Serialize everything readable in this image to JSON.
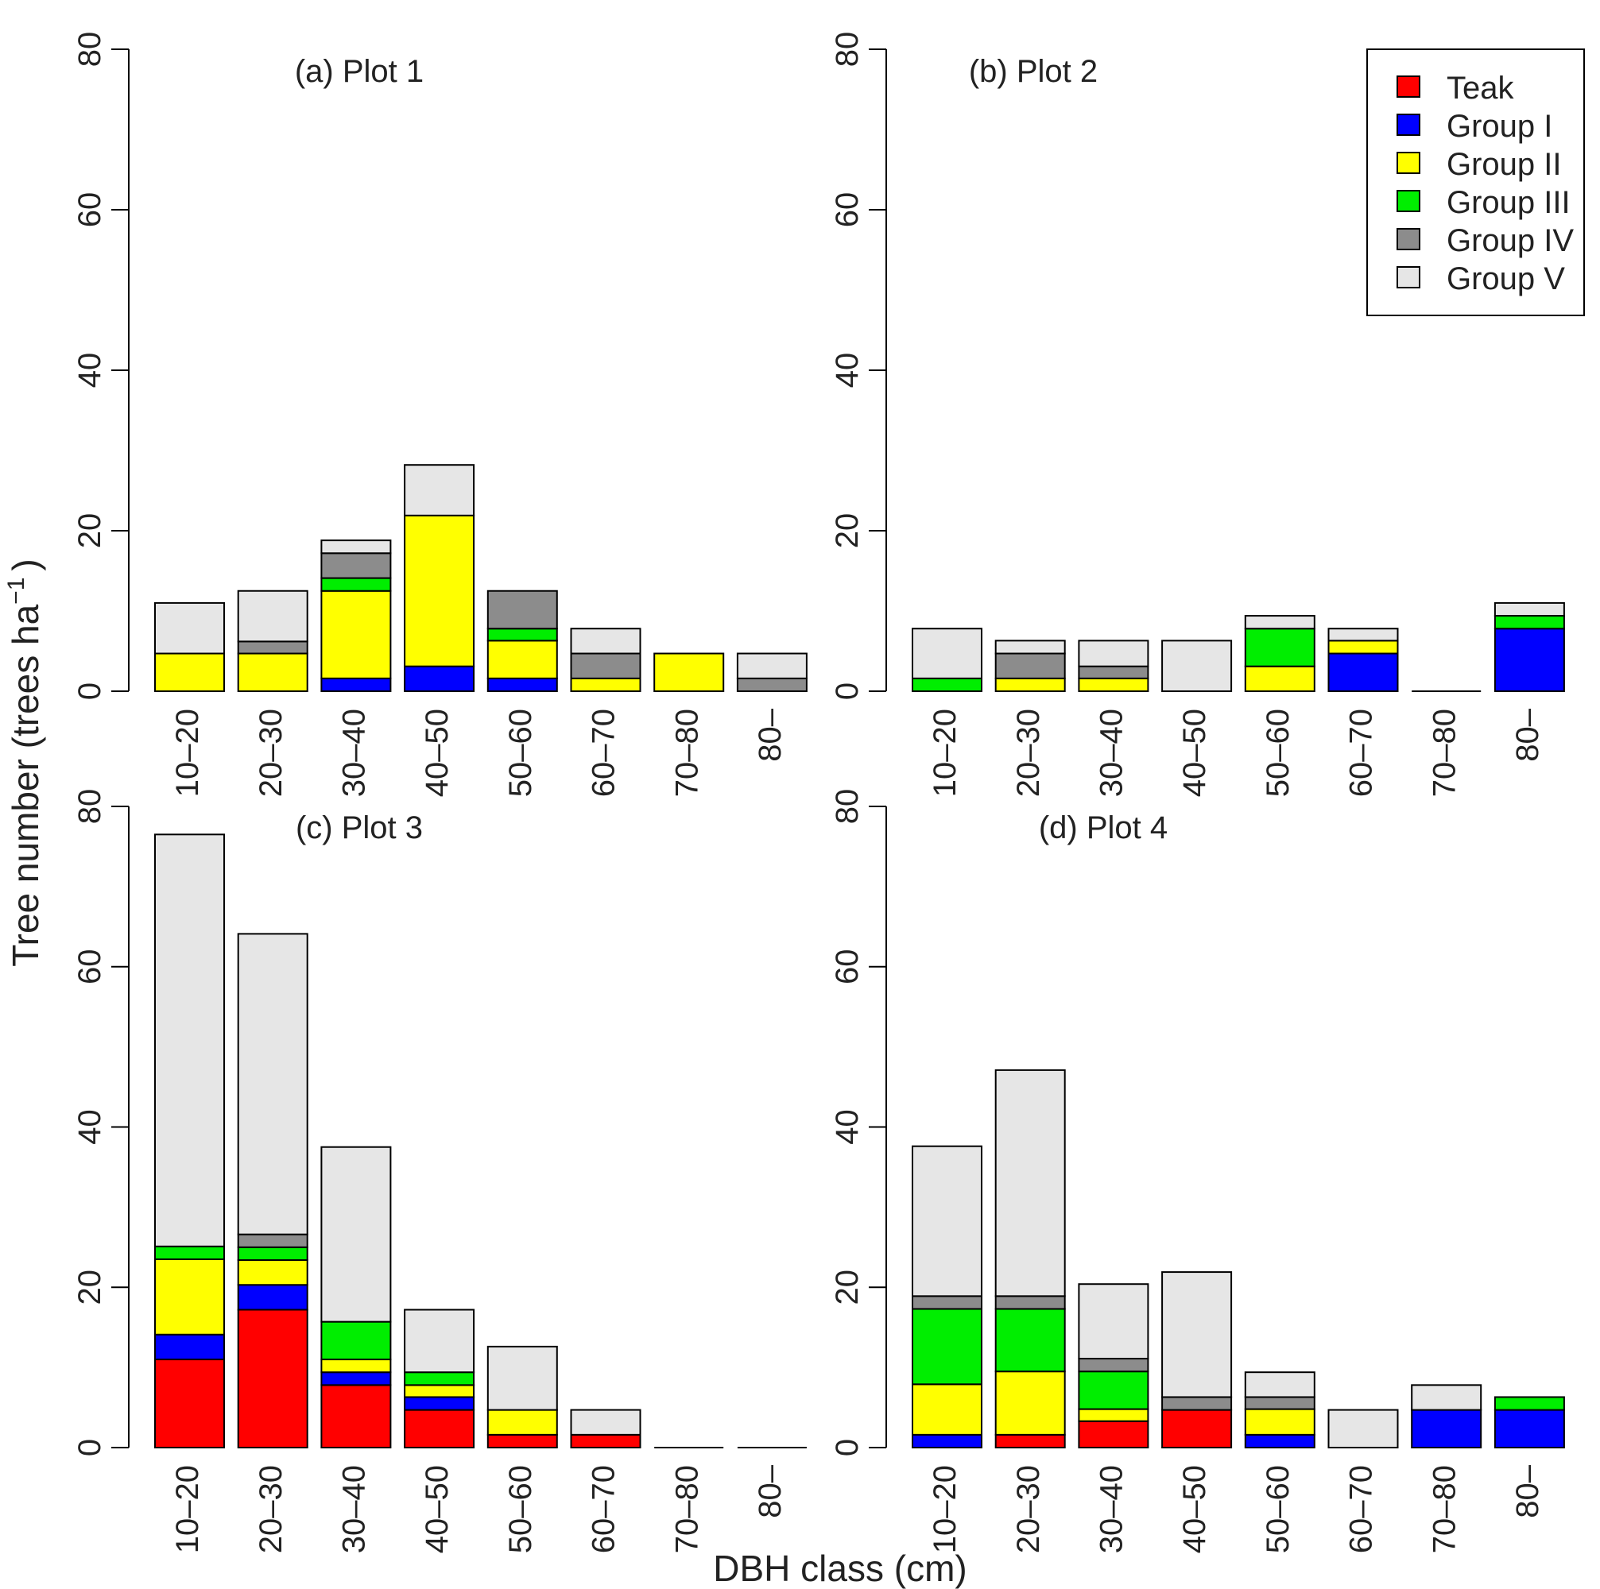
{
  "figure": {
    "ylabel": "Tree number (trees ha",
    "ylabel_superscript": "−1",
    "ylabel_close": ")",
    "xlabel": "DBH class (cm)"
  },
  "colors": {
    "Teak": "#ff0000",
    "Group I": "#0000ff",
    "Group II": "#ffff00",
    "Group III": "#00ee00",
    "Group IV": "#8c8c8c",
    "Group V": "#e6e6e6"
  },
  "legend": {
    "placement": "top-right",
    "entries": [
      "Teak",
      "Group I",
      "Group II",
      "Group III",
      "Group IV",
      "Group V"
    ]
  },
  "chart_data": [
    {
      "type": "bar",
      "stacked": true,
      "title": "(a) Plot 1",
      "categories": [
        "10–20",
        "20–30",
        "30–40",
        "40–50",
        "50–60",
        "60–70",
        "70–80",
        "80–"
      ],
      "ylim": [
        0,
        80
      ],
      "yticks": [
        0,
        20,
        40,
        60,
        80
      ],
      "series": [
        {
          "name": "Teak",
          "values": [
            0,
            0,
            0,
            0,
            0,
            0,
            0,
            0
          ]
        },
        {
          "name": "Group I",
          "values": [
            0,
            0,
            1.6,
            3.1,
            1.6,
            0,
            0,
            0
          ]
        },
        {
          "name": "Group II",
          "values": [
            4.7,
            4.7,
            10.9,
            18.8,
            4.7,
            1.6,
            4.7,
            0
          ]
        },
        {
          "name": "Group III",
          "values": [
            0,
            0,
            1.6,
            0,
            1.5,
            0,
            0,
            0
          ]
        },
        {
          "name": "Group IV",
          "values": [
            0,
            1.5,
            3.1,
            0,
            4.7,
            3.1,
            0,
            1.6
          ]
        },
        {
          "name": "Group V",
          "values": [
            6.3,
            6.3,
            1.6,
            6.3,
            0,
            3.1,
            0,
            3.1
          ]
        }
      ]
    },
    {
      "type": "bar",
      "stacked": true,
      "title": "(b) Plot 2",
      "categories": [
        "10–20",
        "20–30",
        "30–40",
        "40–50",
        "50–60",
        "60–70",
        "70–80",
        "80–"
      ],
      "ylim": [
        0,
        80
      ],
      "yticks": [
        0,
        20,
        40,
        60,
        80
      ],
      "series": [
        {
          "name": "Teak",
          "values": [
            0,
            0,
            0,
            0,
            0,
            0,
            0,
            0
          ]
        },
        {
          "name": "Group I",
          "values": [
            0,
            0,
            0,
            0,
            0,
            4.7,
            0,
            7.8
          ]
        },
        {
          "name": "Group II",
          "values": [
            0,
            1.6,
            1.6,
            0,
            3.1,
            1.6,
            0,
            0
          ]
        },
        {
          "name": "Group III",
          "values": [
            1.6,
            0,
            0,
            0,
            4.7,
            0,
            0,
            1.6
          ]
        },
        {
          "name": "Group IV",
          "values": [
            0,
            3.1,
            1.5,
            0,
            0,
            0,
            0,
            0
          ]
        },
        {
          "name": "Group V",
          "values": [
            6.2,
            1.6,
            3.2,
            6.3,
            1.6,
            1.5,
            0,
            1.6
          ]
        }
      ]
    },
    {
      "type": "bar",
      "stacked": true,
      "title": "(c) Plot 3",
      "categories": [
        "10–20",
        "20–30",
        "30–40",
        "40–50",
        "50–60",
        "60–70",
        "70–80",
        "80–"
      ],
      "ylim": [
        0,
        80
      ],
      "yticks": [
        0,
        20,
        40,
        60,
        80
      ],
      "series": [
        {
          "name": "Teak",
          "values": [
            11.0,
            17.2,
            7.8,
            4.7,
            1.6,
            1.6,
            0,
            0
          ]
        },
        {
          "name": "Group I",
          "values": [
            3.1,
            3.1,
            1.6,
            1.6,
            0,
            0,
            0,
            0
          ]
        },
        {
          "name": "Group II",
          "values": [
            9.4,
            3.1,
            1.6,
            1.5,
            3.1,
            0,
            0,
            0
          ]
        },
        {
          "name": "Group III",
          "values": [
            1.6,
            1.6,
            4.7,
            1.6,
            0,
            0,
            0,
            0
          ]
        },
        {
          "name": "Group IV",
          "values": [
            0,
            1.6,
            0,
            0,
            0,
            0,
            0,
            0
          ]
        },
        {
          "name": "Group V",
          "values": [
            51.4,
            37.5,
            21.8,
            7.8,
            7.9,
            3.1,
            0,
            0
          ]
        }
      ]
    },
    {
      "type": "bar",
      "stacked": true,
      "title": "(d)  Plot 4",
      "categories": [
        "10–20",
        "20–30",
        "30–40",
        "40–50",
        "50–60",
        "60–70",
        "70–80",
        "80–"
      ],
      "ylim": [
        0,
        80
      ],
      "yticks": [
        0,
        20,
        40,
        60,
        80
      ],
      "series": [
        {
          "name": "Teak",
          "values": [
            0,
            1.6,
            3.3,
            4.7,
            0,
            0,
            0,
            0
          ]
        },
        {
          "name": "Group I",
          "values": [
            1.6,
            0,
            0,
            0,
            1.6,
            0,
            4.7,
            4.7
          ]
        },
        {
          "name": "Group II",
          "values": [
            6.3,
            7.9,
            1.5,
            0,
            3.2,
            0,
            0,
            0
          ]
        },
        {
          "name": "Group III",
          "values": [
            9.4,
            7.8,
            4.7,
            0,
            0,
            0,
            0,
            1.6
          ]
        },
        {
          "name": "Group IV",
          "values": [
            1.6,
            1.6,
            1.6,
            1.6,
            1.5,
            0,
            0,
            0
          ]
        },
        {
          "name": "Group V",
          "values": [
            18.7,
            28.2,
            9.3,
            15.6,
            3.1,
            4.7,
            3.1,
            0
          ]
        }
      ]
    }
  ]
}
